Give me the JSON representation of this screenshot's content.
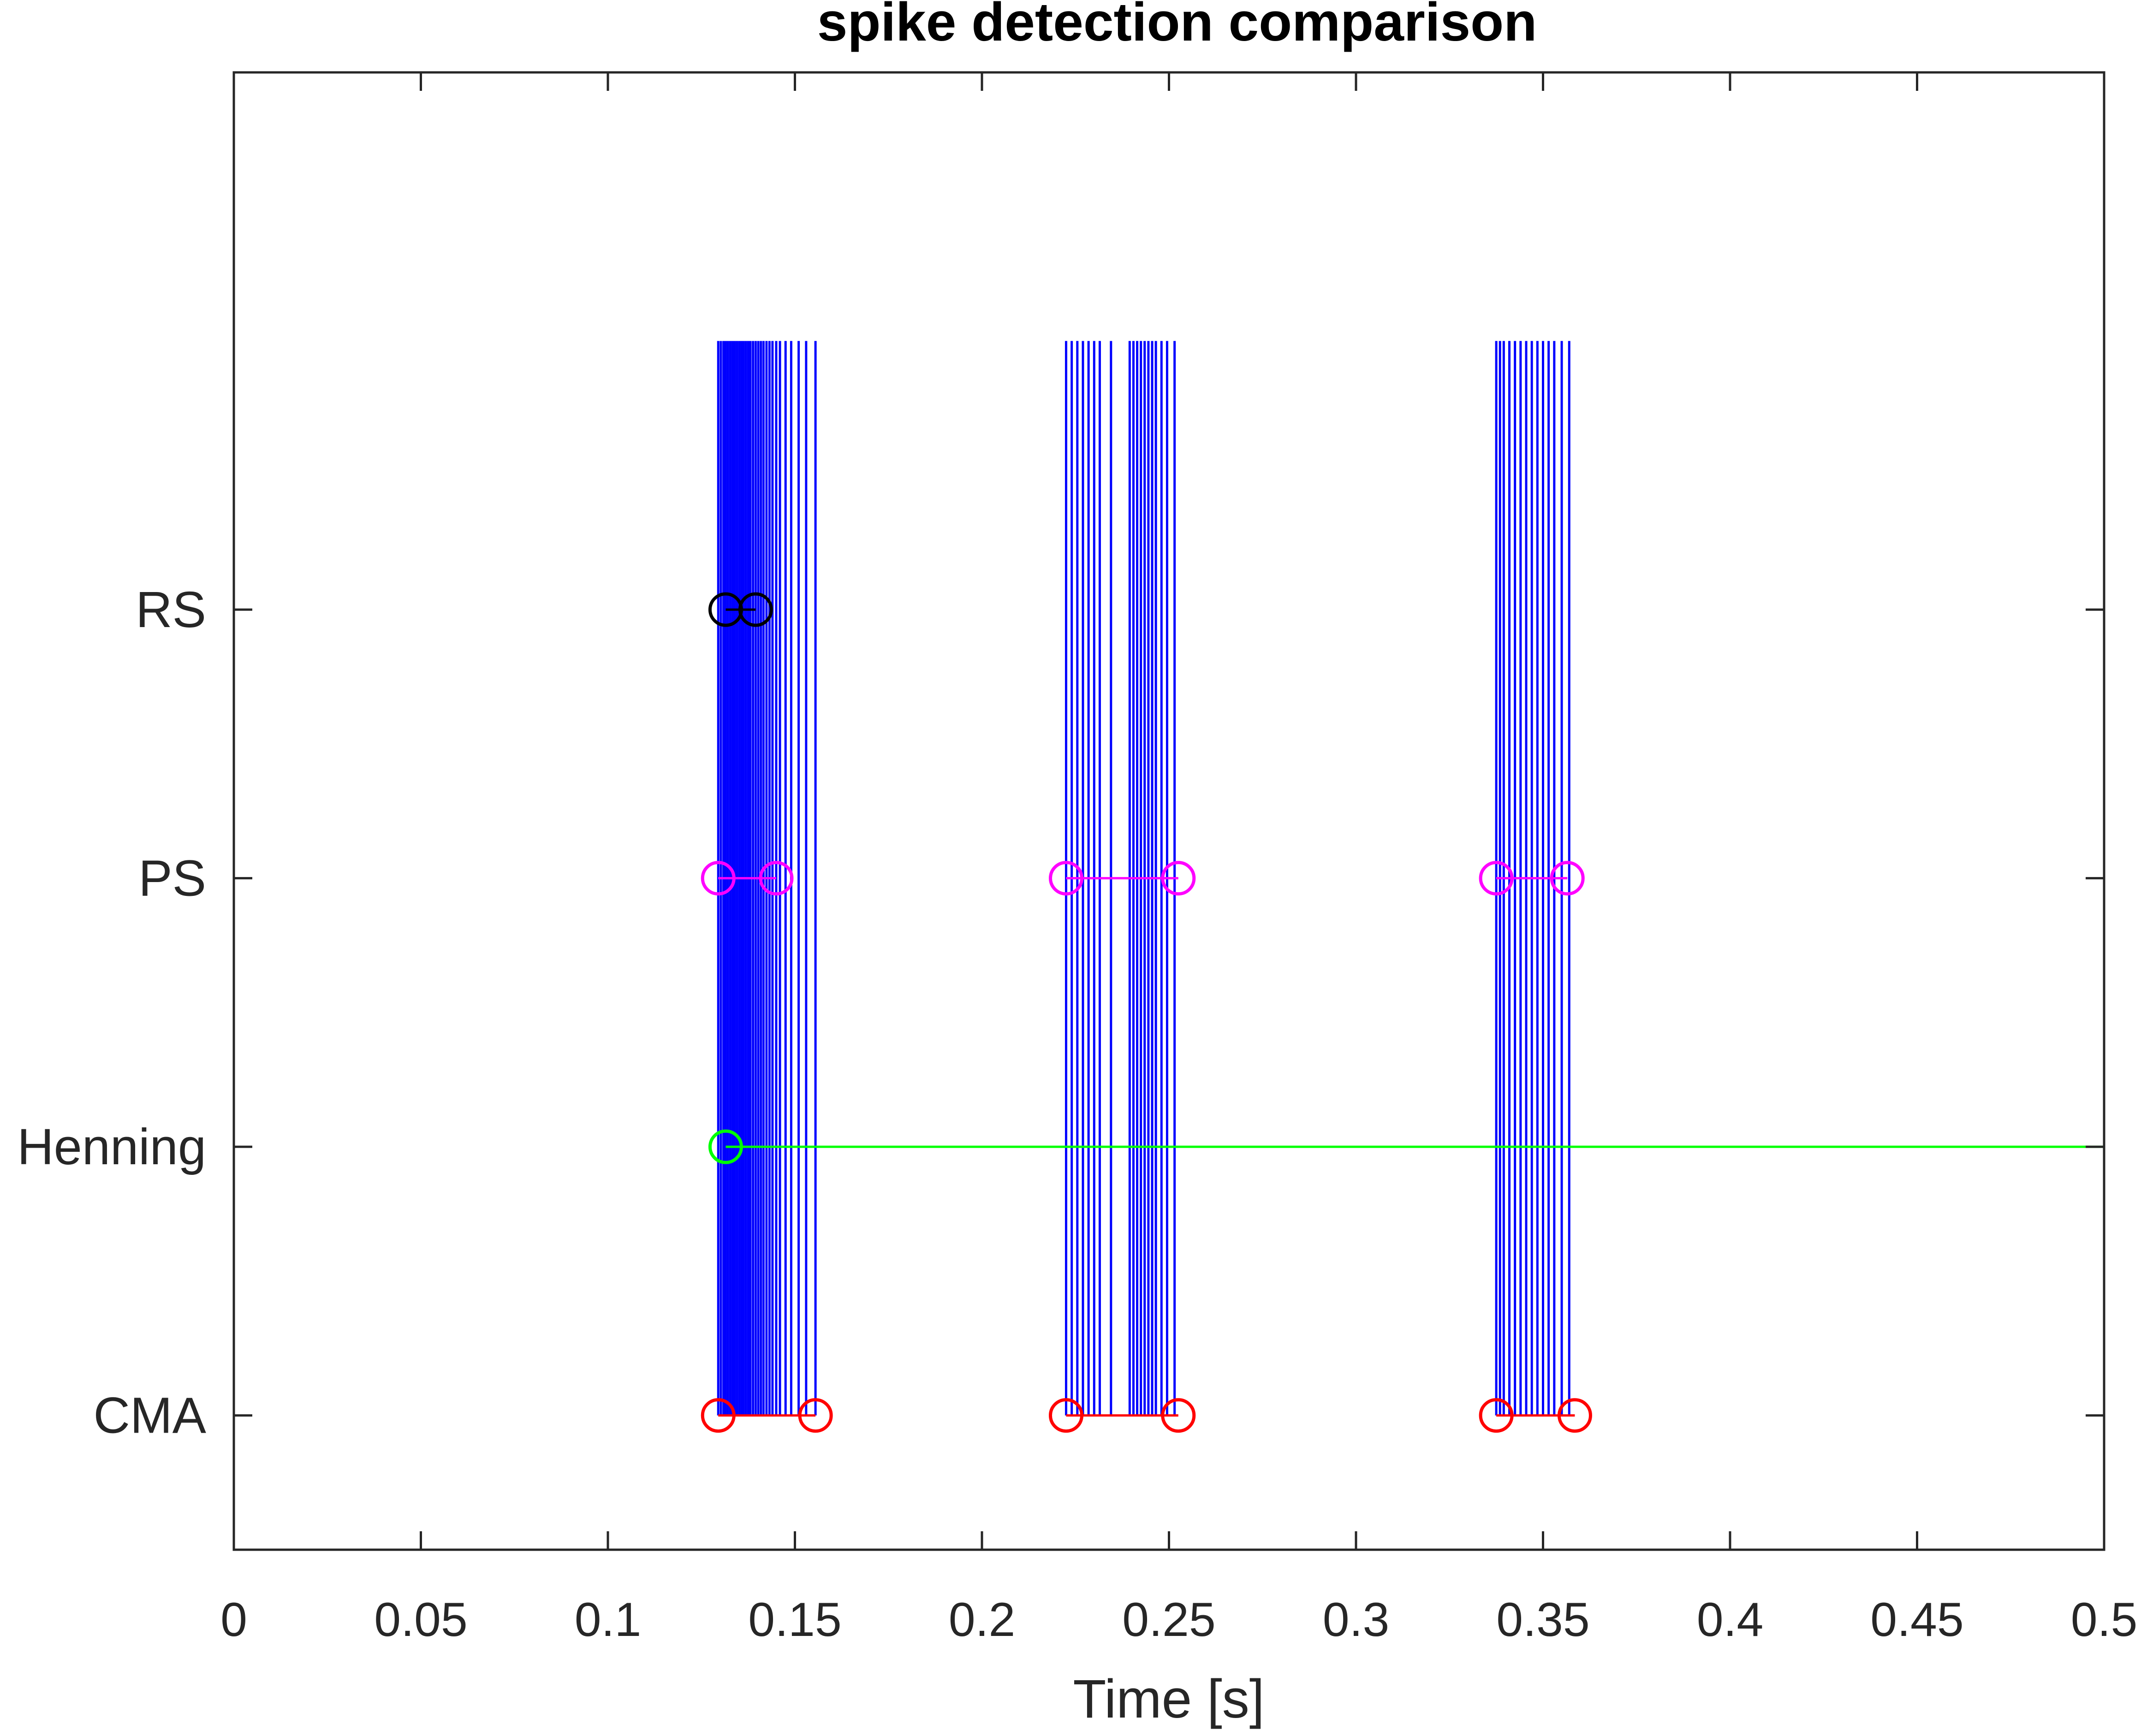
{
  "chart_data": {
    "type": "scatter",
    "title": "spike detection comparison",
    "xlabel": "Time [s]",
    "ylabel": "",
    "xlim": [
      0,
      0.5
    ],
    "ylim": [
      0.5,
      6
    ],
    "grid": false,
    "xticks": [
      0,
      0.05,
      0.1,
      0.15,
      0.2,
      0.25,
      0.3,
      0.35,
      0.4,
      0.45,
      0.5
    ],
    "xtick_labels": [
      "0",
      "0.05",
      "0.1",
      "0.15",
      "0.2",
      "0.25",
      "0.3",
      "0.35",
      "0.4",
      "0.45",
      "0.5"
    ],
    "yticks": [
      1,
      2,
      3,
      4
    ],
    "ytick_labels": [
      "CMA",
      "Henning",
      "PS",
      "RS"
    ],
    "spike_raster": {
      "color": "#0000ff",
      "y_range": [
        1,
        5
      ],
      "times": [
        0.1295,
        0.1302,
        0.1309,
        0.1315,
        0.1321,
        0.1327,
        0.1333,
        0.1339,
        0.1345,
        0.1351,
        0.1357,
        0.1363,
        0.1369,
        0.1375,
        0.1381,
        0.1388,
        0.1395,
        0.1402,
        0.1409,
        0.1416,
        0.1424,
        0.1432,
        0.144,
        0.145,
        0.146,
        0.1475,
        0.149,
        0.151,
        0.153,
        0.1555,
        0.2225,
        0.224,
        0.2255,
        0.227,
        0.2285,
        0.23,
        0.2315,
        0.2345,
        0.2395,
        0.2405,
        0.2415,
        0.2425,
        0.2435,
        0.2445,
        0.2455,
        0.2465,
        0.248,
        0.2495,
        0.2515,
        0.3375,
        0.3385,
        0.3395,
        0.341,
        0.3425,
        0.344,
        0.3455,
        0.347,
        0.3485,
        0.35,
        0.3515,
        0.353,
        0.355,
        0.357
      ]
    },
    "series": [
      {
        "name": "RS",
        "color": "#000000",
        "y": 4,
        "markers": [
          0.1315,
          0.1395
        ],
        "segments": [
          [
            0.1315,
            0.1395
          ]
        ]
      },
      {
        "name": "PS",
        "color": "#ff00ff",
        "y": 3,
        "markers": [
          0.1295,
          0.145,
          0.2225,
          0.2525,
          0.3375,
          0.3565
        ],
        "segments": [
          [
            0.1295,
            0.145
          ],
          [
            0.2225,
            0.2525
          ],
          [
            0.3375,
            0.3565
          ]
        ]
      },
      {
        "name": "Henning",
        "color": "#00ff00",
        "y": 2,
        "markers": [
          0.1315
        ],
        "segments": [
          [
            0.1315,
            0.5
          ]
        ]
      },
      {
        "name": "CMA",
        "color": "#ff0000",
        "y": 1,
        "markers": [
          0.1295,
          0.1555,
          0.2225,
          0.2525,
          0.3375,
          0.3585
        ],
        "segments": [
          [
            0.1295,
            0.1555
          ],
          [
            0.2225,
            0.2525
          ],
          [
            0.3375,
            0.3585
          ]
        ]
      }
    ]
  }
}
